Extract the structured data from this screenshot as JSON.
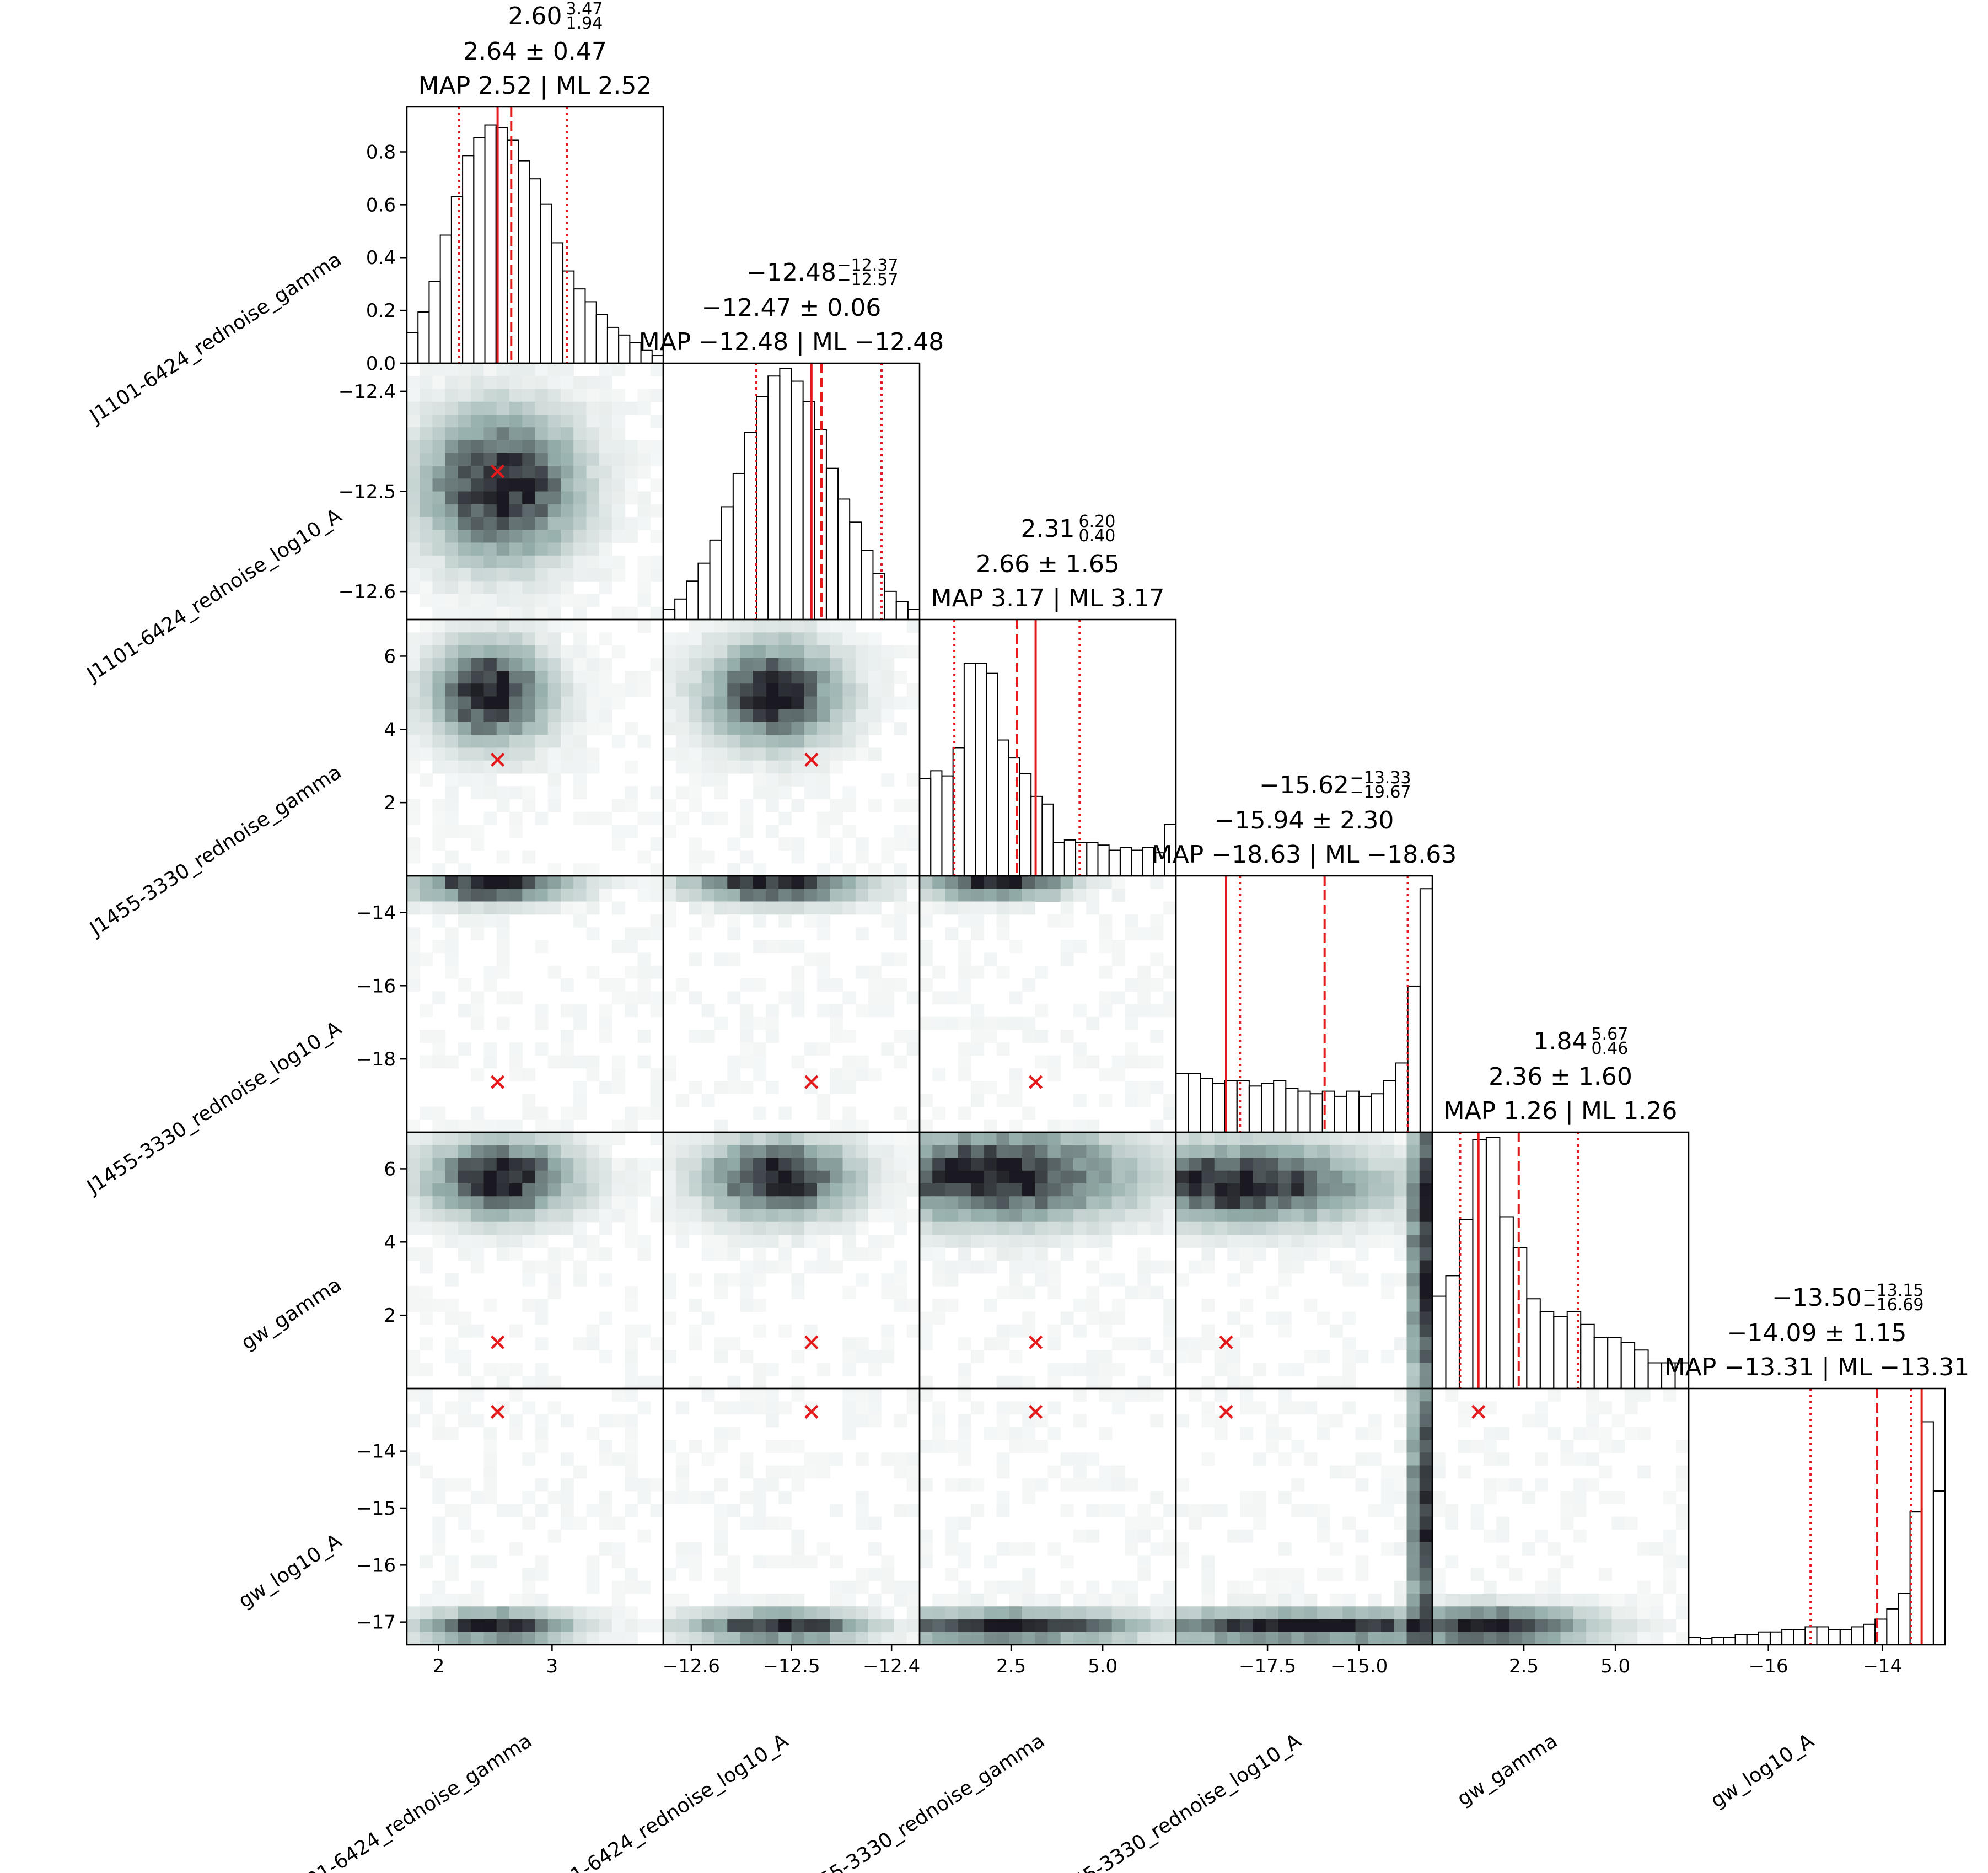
{
  "chart_data": {
    "type": "corner",
    "parameters": [
      "J1101-6424_rednoise_gamma",
      "J1101-6424_rednoise_log10_A",
      "J1455-3330_rednoise_gamma",
      "J1455-3330_rednoise_log10_A",
      "gw_gamma",
      "gw_log10_A"
    ],
    "ranges": [
      [
        1.72,
        3.98
      ],
      [
        -12.628,
        -12.372
      ],
      [
        0.0,
        7.0
      ],
      [
        -20.0,
        -13.0
      ],
      [
        0.0,
        7.0
      ],
      [
        -17.4,
        -12.9
      ]
    ],
    "x_ticks": [
      {
        "values": [
          2,
          3
        ],
        "labels": [
          "2",
          "3"
        ]
      },
      {
        "values": [
          -12.6,
          -12.5,
          -12.4
        ],
        "labels": [
          "−12.6",
          "−12.5",
          "−12.4"
        ]
      },
      {
        "values": [
          2.5,
          5.0
        ],
        "labels": [
          "2.5",
          "5.0"
        ]
      },
      {
        "values": [
          -17.5,
          -15.0
        ],
        "labels": [
          "−17.5",
          "−15.0"
        ]
      },
      {
        "values": [
          2.5,
          5.0
        ],
        "labels": [
          "2.5",
          "5.0"
        ]
      },
      {
        "values": [
          -16,
          -14
        ],
        "labels": [
          "−16",
          "−14"
        ]
      }
    ],
    "y_ticks": [
      {
        "values": [
          -12.6,
          -12.5,
          -12.4
        ],
        "labels": [
          "−12.6",
          "−12.5",
          "−12.4"
        ]
      },
      {
        "values": [
          2,
          4,
          6
        ],
        "labels": [
          "2",
          "4",
          "6"
        ]
      },
      {
        "values": [
          -18,
          -16,
          -14
        ],
        "labels": [
          "−18",
          "−16",
          "−14"
        ]
      },
      {
        "values": [
          2,
          4,
          6
        ],
        "labels": [
          "2",
          "4",
          "6"
        ]
      },
      {
        "values": [
          -17,
          -16,
          -15,
          -14
        ],
        "labels": [
          "−17",
          "−16",
          "−15",
          "−14"
        ]
      }
    ],
    "first_diag_yaxis": {
      "ylim": [
        0,
        0.97
      ],
      "values": [
        0.0,
        0.2,
        0.4,
        0.6,
        0.8
      ],
      "labels": [
        "0.0",
        "0.2",
        "0.4",
        "0.6",
        "0.8"
      ]
    },
    "stats": [
      {
        "median": "2.60",
        "upper": "3.47",
        "lower": "1.94",
        "mean_std": "2.64 ± 0.47",
        "map_ml": "MAP 2.52 | ML 2.52"
      },
      {
        "median": "−12.48",
        "upper": "−12.37",
        "lower": "−12.57",
        "mean_std": "−12.47 ± 0.06",
        "map_ml": "MAP −12.48 | ML −12.48"
      },
      {
        "median": "2.31",
        "upper": "6.20",
        "lower": "0.40",
        "mean_std": "2.66 ± 1.65",
        "map_ml": "MAP 3.17 | ML 3.17"
      },
      {
        "median": "−15.62",
        "upper": "−13.33",
        "lower": "−19.67",
        "mean_std": "−15.94 ± 2.30",
        "map_ml": "MAP −18.63 | ML −18.63"
      },
      {
        "median": "1.84",
        "upper": "5.67",
        "lower": "0.46",
        "mean_std": "2.36 ± 1.60",
        "map_ml": "MAP 1.26 | ML 1.26"
      },
      {
        "median": "−13.50",
        "upper": "−13.15",
        "lower": "−16.69",
        "mean_std": "−14.09 ± 1.15",
        "map_ml": "MAP −13.31 | ML −13.31"
      }
    ],
    "markers": [
      {
        "map": 2.52,
        "mean": 2.64,
        "q_lo": 2.18,
        "q_hi": 3.13
      },
      {
        "map": -12.48,
        "mean": -12.47,
        "q_lo": -12.535,
        "q_hi": -12.41
      },
      {
        "map": 3.17,
        "mean": 2.66,
        "q_lo": 0.95,
        "q_hi": 4.37
      },
      {
        "map": -18.63,
        "mean": -15.94,
        "q_lo": -18.25,
        "q_hi": -13.67
      },
      {
        "map": 1.26,
        "mean": 2.36,
        "q_lo": 0.76,
        "q_hi": 3.98
      },
      {
        "map": -13.31,
        "mean": -14.09,
        "q_lo": -15.26,
        "q_hi": -13.5
      }
    ],
    "histograms": [
      [
        0.12,
        0.2,
        0.32,
        0.5,
        0.65,
        0.81,
        0.88,
        0.93,
        0.92,
        0.87,
        0.79,
        0.72,
        0.62,
        0.47,
        0.36,
        0.29,
        0.24,
        0.19,
        0.14,
        0.11,
        0.08,
        0.05,
        0.03
      ],
      [
        0.04,
        0.08,
        0.15,
        0.22,
        0.31,
        0.44,
        0.57,
        0.73,
        0.87,
        0.95,
        0.98,
        0.93,
        0.85,
        0.74,
        0.59,
        0.47,
        0.38,
        0.27,
        0.18,
        0.11,
        0.07,
        0.04
      ],
      [
        0.38,
        0.41,
        0.39,
        0.5,
        0.83,
        0.83,
        0.79,
        0.53,
        0.46,
        0.4,
        0.31,
        0.28,
        0.13,
        0.14,
        0.13,
        0.13,
        0.12,
        0.1,
        0.11,
        0.1,
        0.11,
        0.09,
        0.2
      ],
      [
        0.23,
        0.23,
        0.21,
        0.19,
        0.2,
        0.2,
        0.18,
        0.19,
        0.2,
        0.17,
        0.16,
        0.15,
        0.16,
        0.14,
        0.16,
        0.14,
        0.15,
        0.2,
        0.27,
        0.57,
        0.95
      ],
      [
        0.36,
        0.44,
        0.66,
        0.97,
        0.98,
        0.67,
        0.55,
        0.35,
        0.3,
        0.28,
        0.3,
        0.25,
        0.2,
        0.2,
        0.18,
        0.15,
        0.1,
        0.1,
        0.1
      ],
      [
        0.03,
        0.025,
        0.03,
        0.03,
        0.04,
        0.04,
        0.05,
        0.05,
        0.06,
        0.06,
        0.07,
        0.07,
        0.06,
        0.06,
        0.07,
        0.08,
        0.1,
        0.14,
        0.2,
        0.52,
        0.87,
        0.6
      ]
    ],
    "density": {
      "cmap_from": "#ffffff",
      "cmap_to": "#1a1820",
      "blobs": [
        {
          "pair": [
            0,
            1
          ],
          "cx": 0.37,
          "cy": 0.48,
          "sx": 0.2,
          "sy": 0.19
        },
        {
          "pair": [
            0,
            2
          ],
          "cx": 0.33,
          "cy": 0.29,
          "sx": 0.15,
          "sy": 0.13
        },
        {
          "pair": [
            1,
            2
          ],
          "cx": 0.43,
          "cy": 0.29,
          "sx": 0.17,
          "sy": 0.13
        },
        {
          "pair": [
            0,
            3
          ],
          "cx": 0.33,
          "cy": 0.03,
          "sx": 0.2,
          "sy": 0.05
        },
        {
          "pair": [
            1,
            3
          ],
          "cx": 0.44,
          "cy": 0.03,
          "sx": 0.22,
          "sy": 0.05
        },
        {
          "pair": [
            2,
            3
          ],
          "cx": 0.3,
          "cy": 0.03,
          "sx": 0.18,
          "sy": 0.04
        },
        {
          "pair": [
            0,
            4
          ],
          "cx": 0.37,
          "cy": 0.18,
          "sx": 0.19,
          "sy": 0.1
        },
        {
          "pair": [
            1,
            4
          ],
          "cx": 0.45,
          "cy": 0.18,
          "sx": 0.19,
          "sy": 0.1
        },
        {
          "pair": [
            2,
            4
          ],
          "cx": 0.3,
          "cy": 0.17,
          "sx": 0.35,
          "sy": 0.12
        },
        {
          "pair": [
            3,
            4
          ],
          "cx": 0.96,
          "cy": 0.5,
          "sx": 0.03,
          "sy": 0.5
        },
        {
          "pair": [
            3,
            4
          ],
          "cx": 0.25,
          "cy": 0.2,
          "sx": 0.35,
          "sy": 0.1
        },
        {
          "pair": [
            0,
            5
          ],
          "cx": 0.35,
          "cy": 0.93,
          "sx": 0.2,
          "sy": 0.04
        },
        {
          "pair": [
            1,
            5
          ],
          "cx": 0.45,
          "cy": 0.93,
          "sx": 0.22,
          "sy": 0.04
        },
        {
          "pair": [
            2,
            5
          ],
          "cx": 0.35,
          "cy": 0.93,
          "sx": 0.35,
          "sy": 0.04
        },
        {
          "pair": [
            3,
            5
          ],
          "cx": 0.5,
          "cy": 0.93,
          "sx": 0.45,
          "sy": 0.04
        },
        {
          "pair": [
            3,
            5
          ],
          "cx": 0.96,
          "cy": 0.5,
          "sx": 0.03,
          "sy": 0.5
        },
        {
          "pair": [
            4,
            5
          ],
          "cx": 0.25,
          "cy": 0.93,
          "sx": 0.25,
          "sy": 0.05
        }
      ]
    },
    "colors": {
      "marker": "#e41a1c",
      "line": "#e41a1c",
      "frame": "#000000",
      "hist_edge": "#000000"
    }
  }
}
